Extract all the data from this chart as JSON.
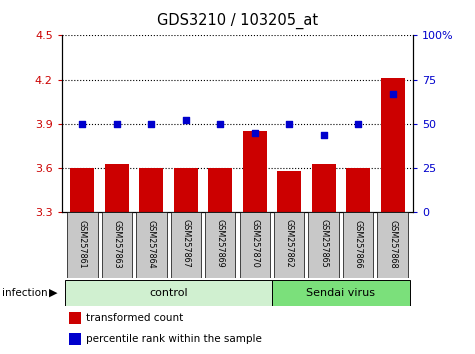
{
  "title": "GDS3210 / 103205_at",
  "samples": [
    "GSM257861",
    "GSM257863",
    "GSM257864",
    "GSM257867",
    "GSM257869",
    "GSM257870",
    "GSM257862",
    "GSM257865",
    "GSM257866",
    "GSM257868"
  ],
  "transformed_counts": [
    3.6,
    3.63,
    3.6,
    3.6,
    3.6,
    3.85,
    3.58,
    3.63,
    3.6,
    4.21
  ],
  "percentile_ranks": [
    50,
    50,
    50,
    52,
    50,
    45,
    50,
    44,
    50,
    67
  ],
  "ylim_left": [
    3.3,
    4.5
  ],
  "ylim_right": [
    0,
    100
  ],
  "yticks_left": [
    3.3,
    3.6,
    3.9,
    4.2,
    4.5
  ],
  "yticks_right": [
    0,
    25,
    50,
    75,
    100
  ],
  "right_ytick_labels": [
    "0",
    "25",
    "50",
    "75",
    "100%"
  ],
  "group_labels": [
    "control",
    "Sendai virus"
  ],
  "group_colors": [
    "#d0f0d0",
    "#7be07b"
  ],
  "infection_label": "infection",
  "bar_color": "#cc0000",
  "dot_color": "#0000cc",
  "legend_items": [
    "transformed count",
    "percentile rank within the sample"
  ],
  "legend_colors": [
    "#cc0000",
    "#0000cc"
  ],
  "bar_width": 0.7,
  "sample_box_color": "#c8c8c8",
  "n_control": 6,
  "n_total": 10
}
